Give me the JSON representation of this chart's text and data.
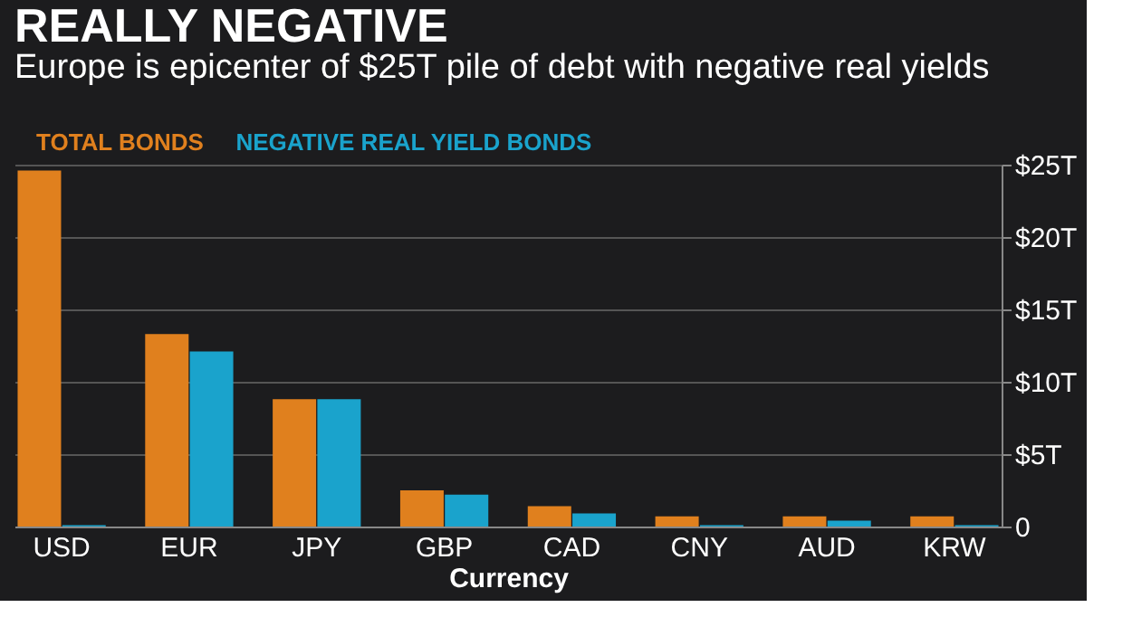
{
  "chart_data": {
    "type": "bar",
    "title": "REALLY NEGATIVE",
    "subtitle": "Europe is epicenter of $25T pile of debt with negative real yields",
    "xlabel": "Currency",
    "categories": [
      "USD",
      "EUR",
      "JPY",
      "GBP",
      "CAD",
      "CNY",
      "AUD",
      "KRW"
    ],
    "series": [
      {
        "name": "TOTAL BONDS",
        "color": "#e0801e",
        "values": [
          24.6,
          13.3,
          8.8,
          2.5,
          1.4,
          0.7,
          0.7,
          0.7
        ]
      },
      {
        "name": "NEGATIVE REAL YIELD BONDS",
        "color": "#1aa3cc",
        "values": [
          0.1,
          12.1,
          8.8,
          2.2,
          0.9,
          0.1,
          0.4,
          0.1
        ]
      }
    ],
    "ylim": [
      0,
      25
    ],
    "yticks": [
      0,
      {
        "value": 5,
        "label": "$5T"
      },
      {
        "value": 10,
        "label": "$10T"
      },
      {
        "value": 15,
        "label": "$15T"
      },
      {
        "value": 20,
        "label": "$20T"
      },
      {
        "value": 25,
        "label": "$25T"
      }
    ],
    "grid": "y",
    "legend": "top left"
  }
}
